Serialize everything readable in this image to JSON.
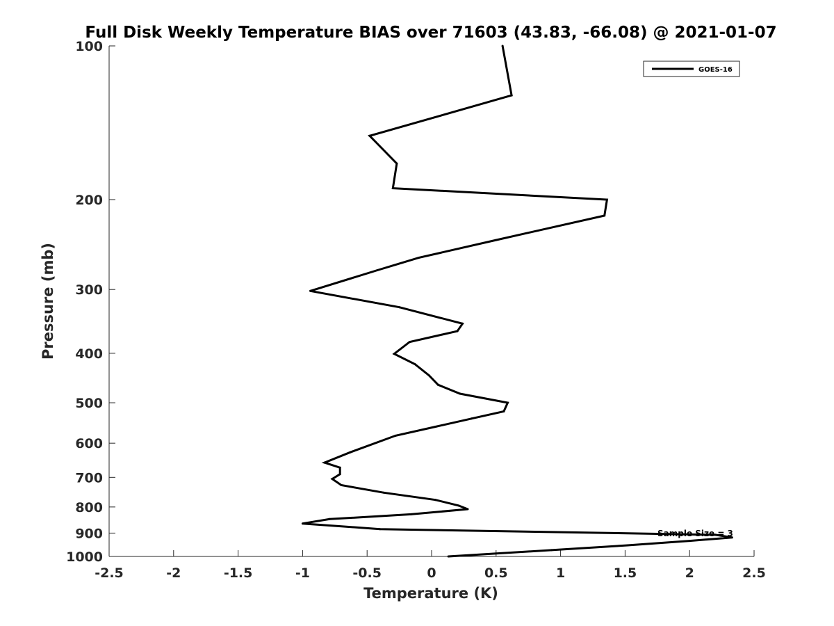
{
  "chart_data": {
    "type": "line",
    "title": "Full Disk Weekly Temperature BIAS over 71603 (43.83, -66.08) @ 2021-01-07",
    "xlabel": "Temperature (K)",
    "ylabel": "Pressure (mb)",
    "xlim": [
      -2.5,
      2.5
    ],
    "ylim": [
      1000,
      100
    ],
    "y_scale": "log",
    "x_ticks": [
      "-2.5",
      "-2",
      "-1.5",
      "-1",
      "-0.5",
      "0",
      "0.5",
      "1",
      "1.5",
      "2",
      "2.5"
    ],
    "y_ticks": [
      "100",
      "200",
      "300",
      "400",
      "500",
      "600",
      "700",
      "800",
      "900",
      "1000"
    ],
    "grid": false,
    "legend": {
      "position": "top-right",
      "entries": [
        "GOES-16"
      ]
    },
    "annotation": "Sample Size = 3",
    "series": [
      {
        "name": "GOES-16",
        "color": "#000000",
        "points": [
          {
            "x": 0.55,
            "p": 100
          },
          {
            "x": 0.62,
            "p": 125
          },
          {
            "x": -0.48,
            "p": 150
          },
          {
            "x": -0.27,
            "p": 170
          },
          {
            "x": -0.3,
            "p": 190
          },
          {
            "x": 1.36,
            "p": 200
          },
          {
            "x": 1.34,
            "p": 215
          },
          {
            "x": 0.5,
            "p": 240
          },
          {
            "x": -0.1,
            "p": 260
          },
          {
            "x": -0.42,
            "p": 275
          },
          {
            "x": -0.94,
            "p": 302
          },
          {
            "x": -0.25,
            "p": 325
          },
          {
            "x": 0.24,
            "p": 350
          },
          {
            "x": 0.2,
            "p": 362
          },
          {
            "x": -0.17,
            "p": 380
          },
          {
            "x": -0.29,
            "p": 401
          },
          {
            "x": -0.13,
            "p": 420
          },
          {
            "x": -0.02,
            "p": 442
          },
          {
            "x": 0.05,
            "p": 461
          },
          {
            "x": 0.22,
            "p": 480
          },
          {
            "x": 0.59,
            "p": 500
          },
          {
            "x": 0.56,
            "p": 520
          },
          {
            "x": 0.31,
            "p": 537
          },
          {
            "x": 0.03,
            "p": 557
          },
          {
            "x": -0.28,
            "p": 580
          },
          {
            "x": -0.63,
            "p": 625
          },
          {
            "x": -0.83,
            "p": 655
          },
          {
            "x": -0.71,
            "p": 670
          },
          {
            "x": -0.71,
            "p": 690
          },
          {
            "x": -0.77,
            "p": 705
          },
          {
            "x": -0.7,
            "p": 725
          },
          {
            "x": -0.37,
            "p": 750
          },
          {
            "x": 0.03,
            "p": 775
          },
          {
            "x": 0.21,
            "p": 795
          },
          {
            "x": 0.28,
            "p": 808
          },
          {
            "x": -0.16,
            "p": 827
          },
          {
            "x": -0.79,
            "p": 845
          },
          {
            "x": -1.0,
            "p": 862
          },
          {
            "x": -0.4,
            "p": 884
          },
          {
            "x": 2.2,
            "p": 907
          },
          {
            "x": 2.33,
            "p": 918
          },
          {
            "x": 2.0,
            "p": 932
          },
          {
            "x": 1.52,
            "p": 951
          },
          {
            "x": 0.93,
            "p": 972
          },
          {
            "x": 0.13,
            "p": 1000
          }
        ]
      }
    ]
  }
}
